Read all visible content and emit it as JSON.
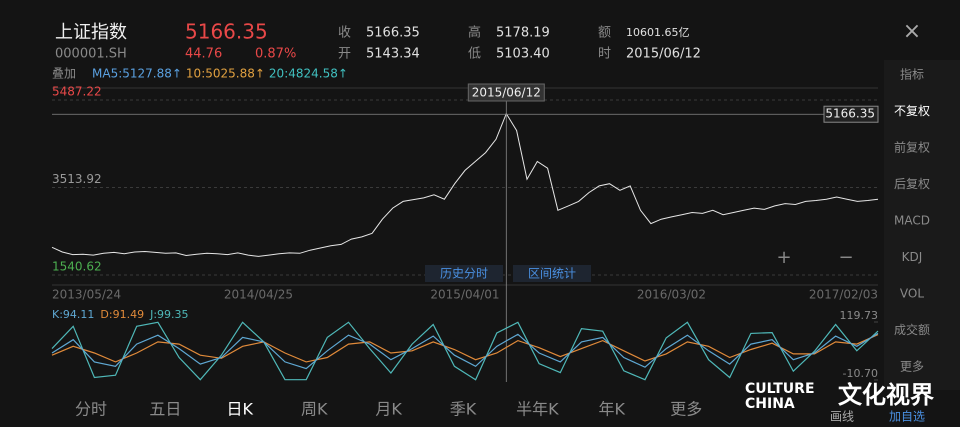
{
  "header": {
    "name": "上证指数",
    "code": "000001.SH",
    "price": "5166.35",
    "change": "44.76",
    "change_pct": "0.87%",
    "fields": [
      {
        "label": "收",
        "value": "5166.35"
      },
      {
        "label": "开",
        "value": "5143.34"
      },
      {
        "label": "高",
        "value": "5178.19"
      },
      {
        "label": "低",
        "value": "5103.40"
      },
      {
        "label": "额",
        "value": "10601.65亿"
      },
      {
        "label": "时",
        "value": "2015/06/12"
      }
    ],
    "close": "×"
  },
  "overlay": {
    "label": "叠加",
    "ma": [
      {
        "text": "MA5:5127.88↑",
        "color": "#5aa0e0"
      },
      {
        "text": "10:5025.88↑",
        "color": "#e0a040"
      },
      {
        "text": "20:4824.58↑",
        "color": "#40c0c0"
      }
    ]
  },
  "side_menu": {
    "items": [
      "指标",
      "不复权",
      "前复权",
      "后复权",
      "MACD",
      "KDJ",
      "VOL",
      "成交额",
      "更多"
    ],
    "selected": 1
  },
  "chart_data": [
    {
      "type": "line",
      "categories": [
        "2013/05/24",
        null,
        null,
        null,
        null,
        null,
        null,
        null,
        null,
        null,
        null,
        null,
        null,
        null,
        null,
        null,
        null,
        null,
        null,
        null,
        "2014/04/25",
        null,
        null,
        null,
        null,
        null,
        null,
        null,
        null,
        null,
        null,
        null,
        null,
        null,
        null,
        null,
        null,
        null,
        null,
        null,
        "2015/04/01",
        null,
        null,
        null,
        null,
        null,
        null,
        null,
        null,
        null,
        null,
        null,
        null,
        null,
        null,
        null,
        null,
        null,
        null,
        null,
        "2016/03/02",
        null,
        null,
        null,
        null,
        null,
        null,
        null,
        null,
        null,
        null,
        null,
        null,
        null,
        null,
        null,
        null,
        null,
        null,
        null,
        "2017/02/03"
      ],
      "values": [
        2165,
        2060,
        2000,
        2010,
        1990,
        2030,
        2050,
        2020,
        2060,
        2070,
        2050,
        2030,
        2040,
        1980,
        2010,
        2030,
        2020,
        2000,
        2040,
        1990,
        1960,
        1990,
        2020,
        2040,
        2030,
        2100,
        2150,
        2200,
        2230,
        2350,
        2400,
        2480,
        2800,
        3050,
        3200,
        3240,
        3280,
        3350,
        3250,
        3600,
        3900,
        4100,
        4300,
        4600,
        5178.19,
        4800,
        3700,
        4100,
        3950,
        3000,
        3100,
        3200,
        3400,
        3550,
        3600,
        3450,
        3550,
        3000,
        2700,
        2800,
        2850,
        2900,
        2950,
        2930,
        3000,
        2900,
        2950,
        3000,
        3050,
        3020,
        3100,
        3150,
        3130,
        3200,
        3220,
        3250,
        3300,
        3250,
        3200,
        3220,
        3250
      ],
      "color": "#e6e6e6",
      "ylim": [
        1540.62,
        5487.22
      ],
      "yticks": [
        1540.62,
        3513.92,
        5487.22
      ],
      "ytick_colors": [
        "#4caf50",
        "#9a9a9a",
        "#e84848"
      ],
      "crosshair": {
        "label": "2015/06/12",
        "value": 5166.35
      }
    },
    {
      "type": "line",
      "series": [
        {
          "name": "K:94.11",
          "color": "#5fa8d3",
          "values": [
            50,
            80,
            30,
            20,
            70,
            90,
            60,
            25,
            40,
            85,
            75,
            30,
            15,
            55,
            90,
            70,
            35,
            60,
            88,
            45,
            20,
            65,
            92,
            50,
            30,
            75,
            85,
            40,
            18,
            60,
            90,
            55,
            25,
            70,
            80,
            35,
            50,
            88,
            65,
            94.11
          ]
        },
        {
          "name": "D:91.49",
          "color": "#e08a3a",
          "values": [
            45,
            65,
            50,
            30,
            50,
            75,
            70,
            45,
            38,
            65,
            75,
            50,
            30,
            40,
            70,
            75,
            50,
            55,
            75,
            58,
            35,
            50,
            78,
            62,
            42,
            60,
            78,
            55,
            32,
            48,
            75,
            65,
            40,
            58,
            72,
            48,
            48,
            75,
            70,
            91.49
          ]
        },
        {
          "name": "J:99.35",
          "color": "#4fb8b8",
          "values": [
            60,
            110,
            -5,
            0,
            110,
            119,
            40,
            -10,
            45,
            119,
            75,
            -10,
            -10,
            85,
            119,
            60,
            5,
            70,
            114,
            20,
            -10,
            95,
            119,
            26,
            6,
            105,
            99,
            10,
            -10,
            84,
            119,
            35,
            -5,
            94,
            96,
            9,
            54,
            114,
            55,
            99.35
          ]
        }
      ],
      "ylim": [
        -10.7,
        119.73
      ],
      "yticks": [
        {
          "value": -10.7,
          "label": "-10.70"
        },
        119.73
      ]
    }
  ],
  "chart_buttons": [
    "历史分时",
    "区间统计"
  ],
  "zoom": [
    "+",
    "−"
  ],
  "tabs": {
    "items": [
      "分时",
      "五日",
      "日K",
      "周K",
      "月K",
      "季K",
      "半年K",
      "年K",
      "更多"
    ],
    "selected": 2
  },
  "watermark": {
    "en": [
      "CULTURE",
      "CHINA"
    ],
    "zh": "文化视界"
  },
  "footer_buttons": [
    "画线",
    "加自选"
  ]
}
